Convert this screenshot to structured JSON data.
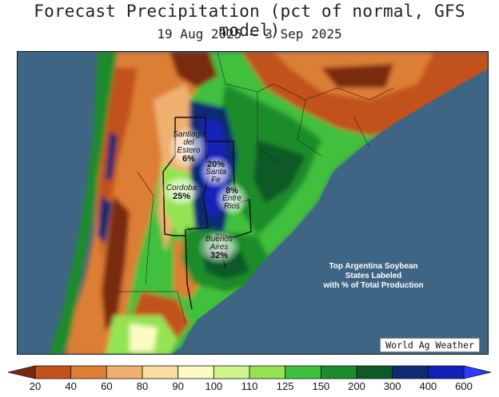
{
  "title": "Forecast Precipitation (pct of normal, GFS model)",
  "subtitle": "19 Aug 2025 — 3 Sep 2025",
  "states": [
    {
      "name_lines": [
        "Santiago",
        "del",
        "Estero"
      ],
      "value": "6%"
    },
    {
      "name_lines": [
        "Santa",
        "Fe"
      ],
      "value": "20%"
    },
    {
      "name_lines": [
        "Cordoba"
      ],
      "value": "25%"
    },
    {
      "name_lines": [
        "Entre",
        "Rios"
      ],
      "value": "8%"
    },
    {
      "name_lines": [
        "Buenos",
        "Aires"
      ],
      "value": "32%"
    }
  ],
  "note_lines": [
    "Top Argentina Soybean",
    "States Labeled",
    "with % of Total Production"
  ],
  "credit": "World Ag Weather",
  "legend": {
    "ticks": [
      "20",
      "40",
      "60",
      "80",
      "90",
      "100",
      "110",
      "125",
      "150",
      "200",
      "300",
      "400",
      "600"
    ],
    "colors": [
      "#7a2a0c",
      "#c2511a",
      "#dd7e35",
      "#efb070",
      "#f8dca0",
      "#fbfbc2",
      "#cdf58a",
      "#94e352",
      "#3fc03c",
      "#1a8c2a",
      "#0c5a26",
      "#0d2a72",
      "#1220b8",
      "#2a3bff"
    ]
  },
  "map_colors": {
    "ocean": "#3f6585",
    "dark_brown": "#7a2a0c",
    "brown": "#c2511a",
    "orange": "#dd7e35",
    "tan": "#efb070",
    "light_tan": "#f8dca0",
    "pale": "#fbfbc2",
    "light_green": "#cdf58a",
    "mid_green": "#94e352",
    "green": "#3fc03c",
    "dark_green": "#1a8c2a",
    "deep_green": "#0c5a26",
    "navy": "#0d2a72",
    "blue": "#1220b8"
  }
}
